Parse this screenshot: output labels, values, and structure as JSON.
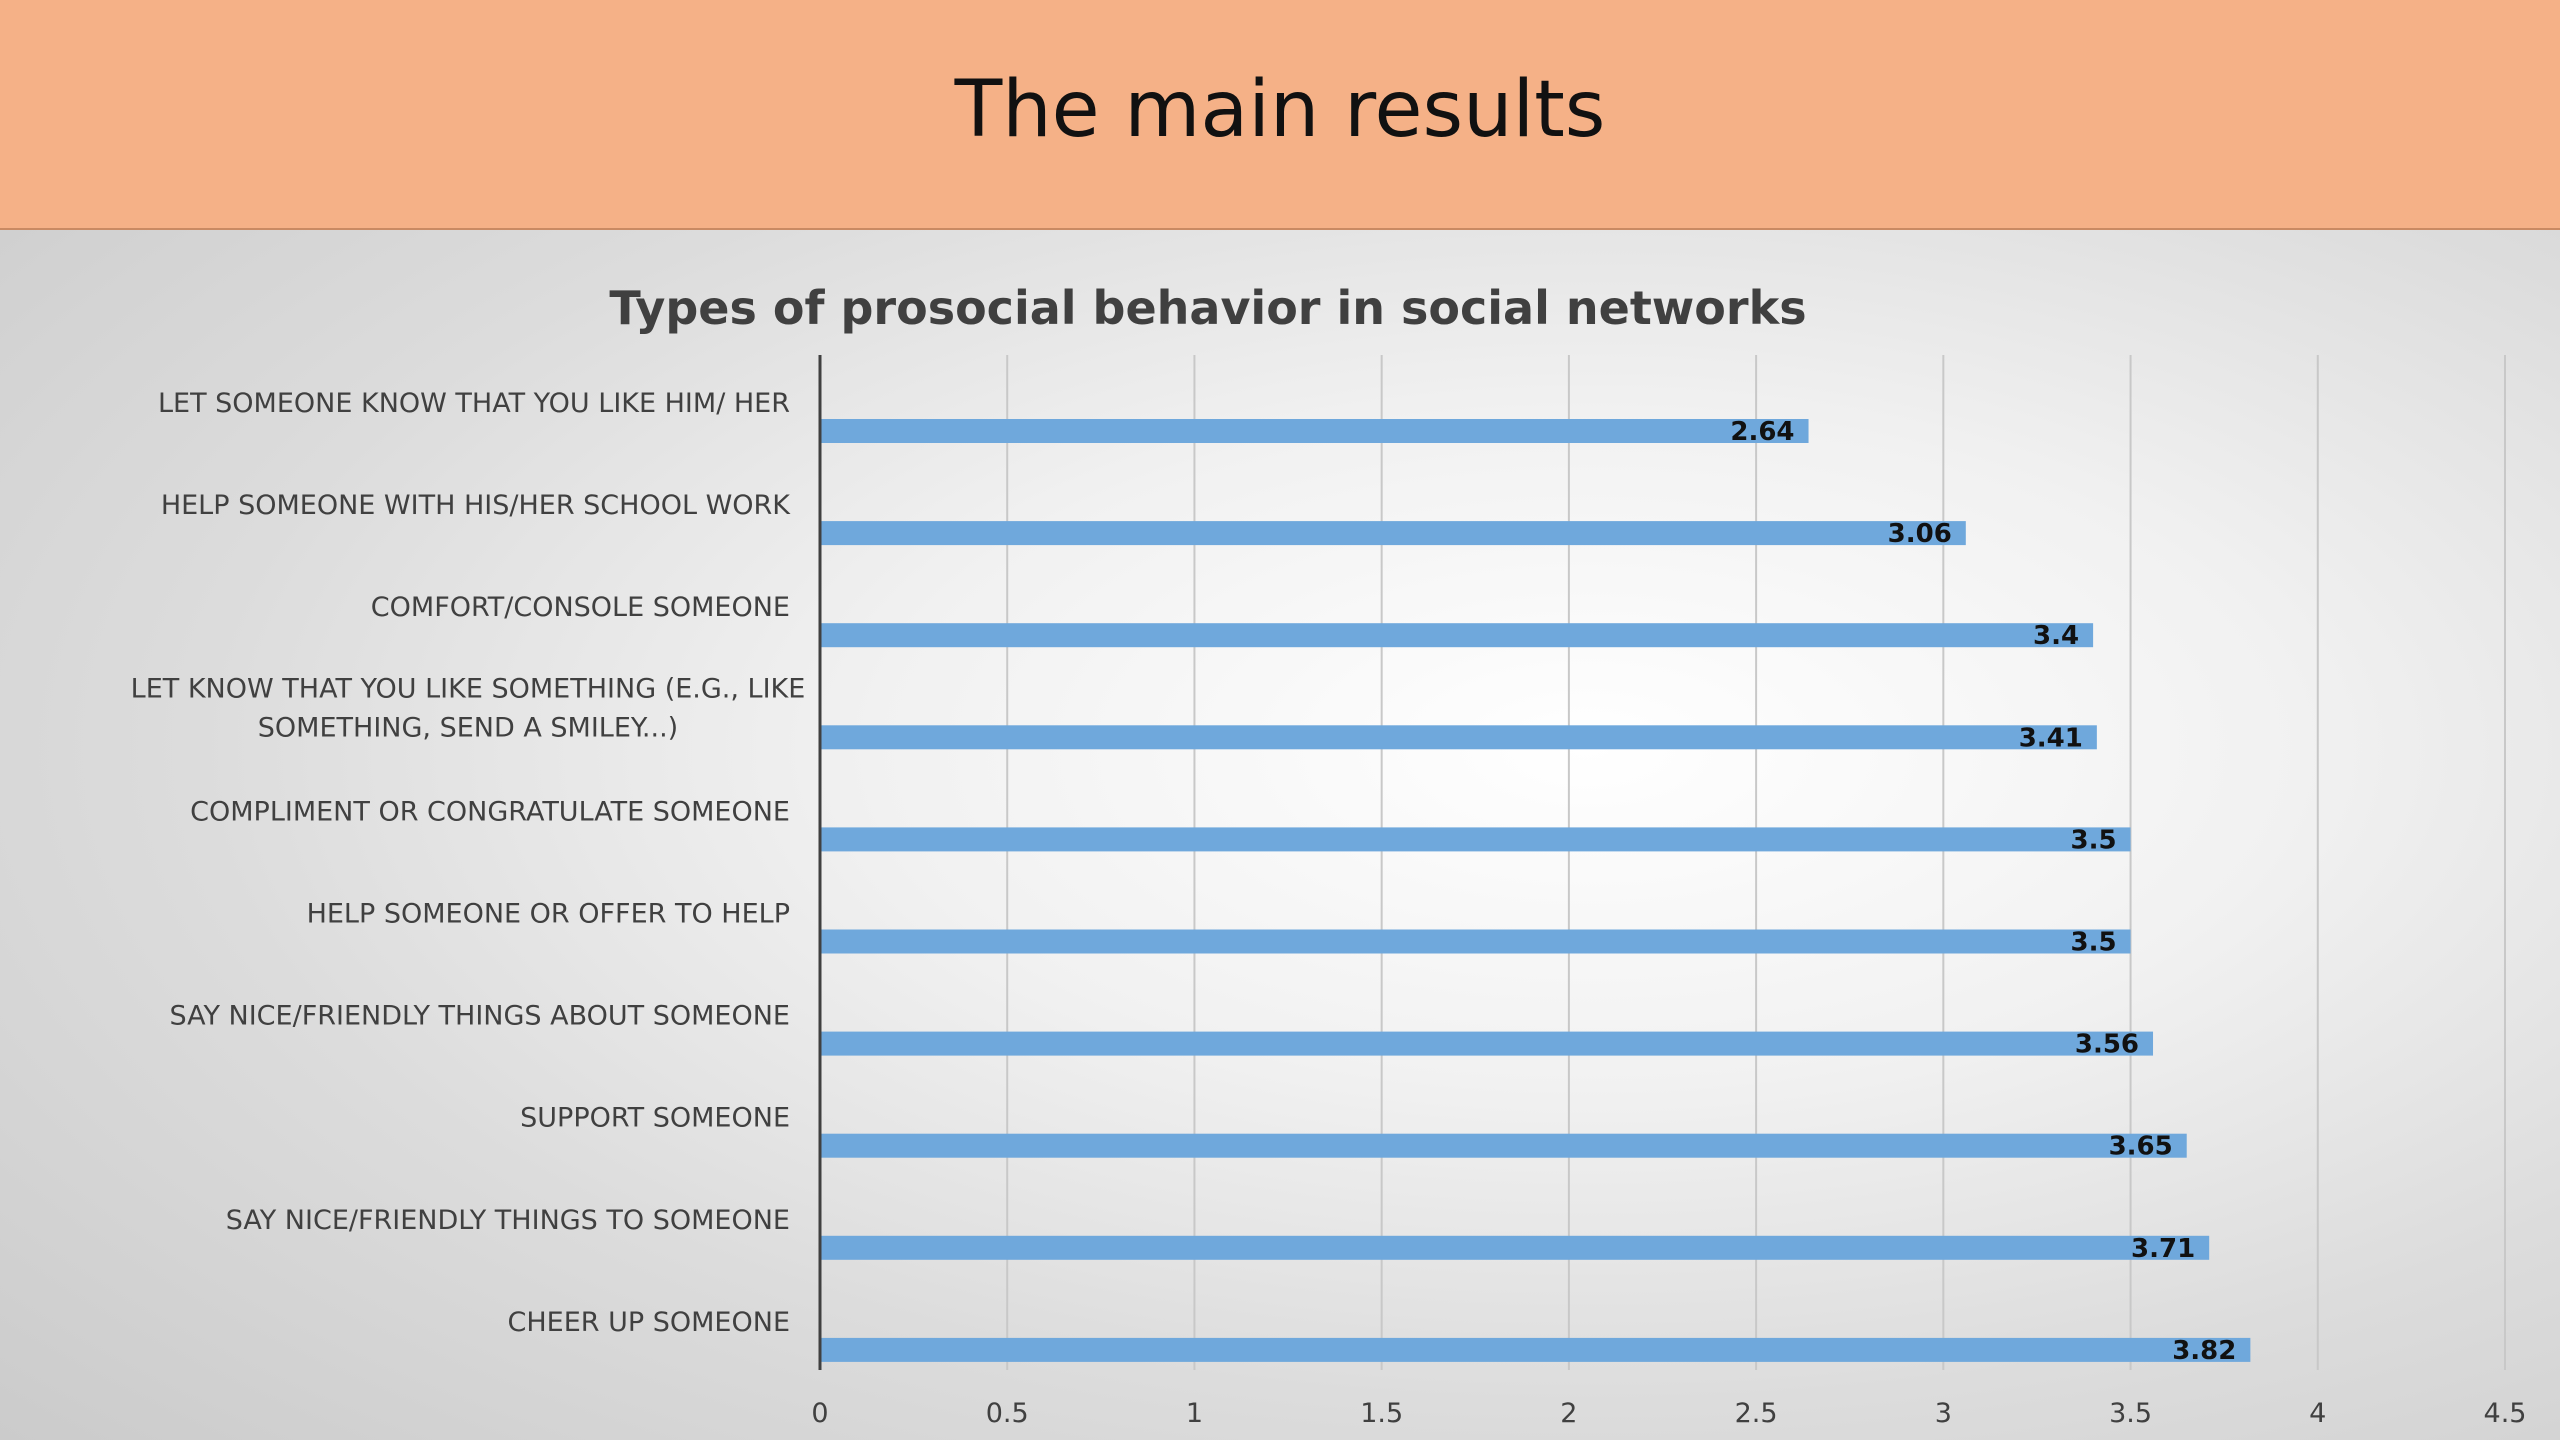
{
  "slide": {
    "title": "The main results",
    "colors": {
      "header_background": "#f5b187",
      "bar": "#6fa8dc",
      "gridline": "#c8c8c8",
      "axis": "#404040"
    }
  },
  "chart_data": {
    "type": "bar",
    "orientation": "horizontal",
    "title": "Types of prosocial behavior in social networks",
    "xlabel": "",
    "ylabel": "",
    "xlim": [
      0,
      4.5
    ],
    "ticks": [
      "0",
      "0.5",
      "1",
      "1.5",
      "2",
      "2.5",
      "3",
      "3.5",
      "4",
      "4.5"
    ],
    "tick_values": [
      0,
      0.5,
      1,
      1.5,
      2,
      2.5,
      3,
      3.5,
      4,
      4.5
    ],
    "grid": true,
    "legend": "none",
    "data_labels": true,
    "categories": [
      "LET SOMEONE KNOW THAT YOU LIKE HIM/ HER",
      "HELP SOMEONE WITH HIS/HER SCHOOL WORK",
      "COMFORT/CONSOLE SOMEONE",
      "LET KNOW THAT YOU LIKE SOMETHING (E.G., LIKE SOMETHING, SEND A SMILEY...)",
      "COMPLIMENT OR CONGRATULATE SOMEONE",
      "HELP SOMEONE OR OFFER TO HELP",
      "SAY NICE/FRIENDLY THINGS ABOUT SOMEONE",
      "SUPPORT SOMEONE",
      "SAY NICE/FRIENDLY THINGS TO SOMEONE",
      "CHEER UP SOMEONE"
    ],
    "category_lines": [
      [
        "LET SOMEONE KNOW THAT YOU LIKE HIM/ HER"
      ],
      [
        "HELP SOMEONE WITH HIS/HER SCHOOL WORK"
      ],
      [
        "COMFORT/CONSOLE SOMEONE"
      ],
      [
        "LET KNOW THAT YOU LIKE SOMETHING (E.G., LIKE",
        "SOMETHING, SEND A SMILEY...)"
      ],
      [
        "COMPLIMENT OR CONGRATULATE SOMEONE"
      ],
      [
        "HELP SOMEONE OR OFFER TO HELP"
      ],
      [
        "SAY NICE/FRIENDLY THINGS ABOUT SOMEONE"
      ],
      [
        "SUPPORT SOMEONE"
      ],
      [
        "SAY NICE/FRIENDLY THINGS TO SOMEONE"
      ],
      [
        "CHEER UP SOMEONE"
      ]
    ],
    "values": [
      2.64,
      3.06,
      3.4,
      3.41,
      3.5,
      3.5,
      3.56,
      3.65,
      3.71,
      3.82
    ],
    "value_labels": [
      "2.64",
      "3.06",
      "3.4",
      "3.41",
      "3.5",
      "3.5",
      "3.56",
      "3.65",
      "3.71",
      "3.82"
    ]
  }
}
